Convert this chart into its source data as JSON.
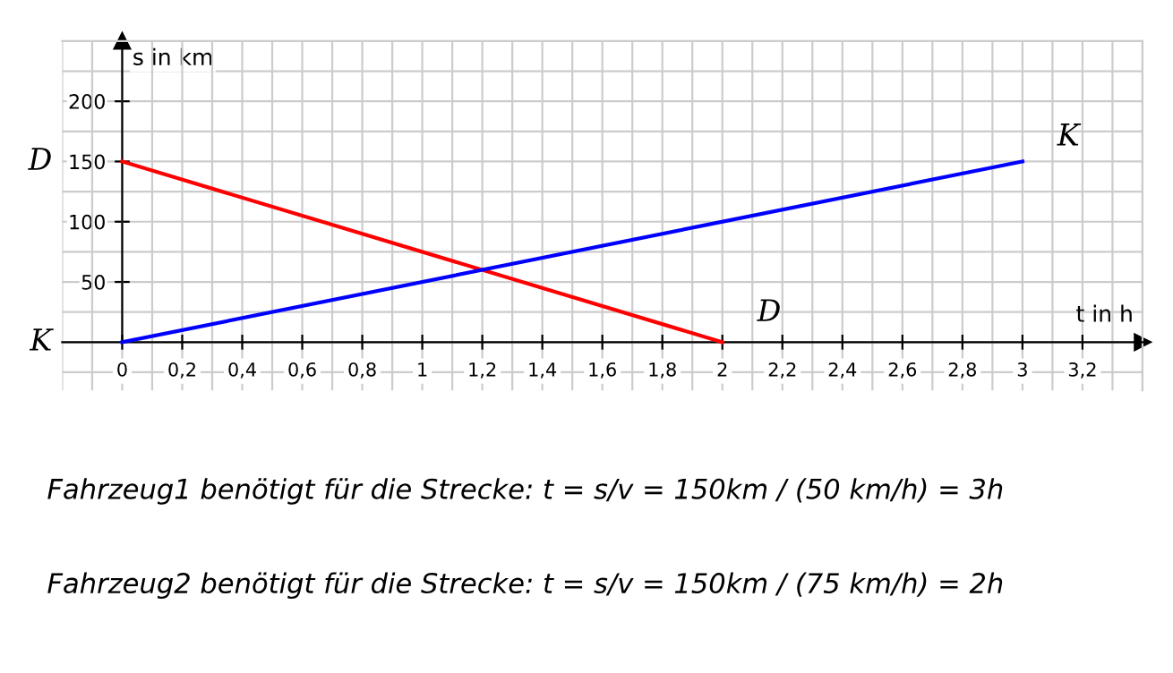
{
  "chart_data": {
    "type": "line",
    "xlabel": "t in h",
    "ylabel": "s in km",
    "series": [
      {
        "name": "D",
        "color": "#ff0000",
        "x": [
          0,
          2
        ],
        "values": [
          150,
          0
        ]
      },
      {
        "name": "K",
        "color": "#0000ff",
        "x": [
          0,
          3
        ],
        "values": [
          0,
          150
        ]
      }
    ],
    "xlim": [
      -0.2,
      3.4
    ],
    "ylim": [
      -40,
      250
    ],
    "xticks": [
      0,
      {
        "value": 0.2,
        "label": "0,2"
      },
      {
        "value": 0.4,
        "label": "0,4"
      },
      {
        "value": 0.6,
        "label": "0,6"
      },
      {
        "value": 0.8,
        "label": "0,8"
      },
      1,
      {
        "value": 1.2,
        "label": "1,2"
      },
      {
        "value": 1.4,
        "label": "1,4"
      },
      {
        "value": 1.6,
        "label": "1,6"
      },
      {
        "value": 1.8,
        "label": "1,8"
      },
      2,
      {
        "value": 2.2,
        "label": "2,2"
      },
      {
        "value": 2.4,
        "label": "2,4"
      },
      {
        "value": 2.6,
        "label": "2,6"
      },
      {
        "value": 2.8,
        "label": "2,8"
      },
      3,
      {
        "value": 3.2,
        "label": "3,2"
      }
    ],
    "yticks": [
      50,
      100,
      150,
      200
    ],
    "grid": true,
    "marker": "none",
    "line_style": "solid",
    "annotations": [
      "Fahrzeug1 benötigt für die Strecke: t = s/v = 150km / (50 km/h) = 3h",
      "Fahrzeug2 benötigt für die Strecke: t = s/v = 150km / (75 km/h) = 2h"
    ]
  }
}
